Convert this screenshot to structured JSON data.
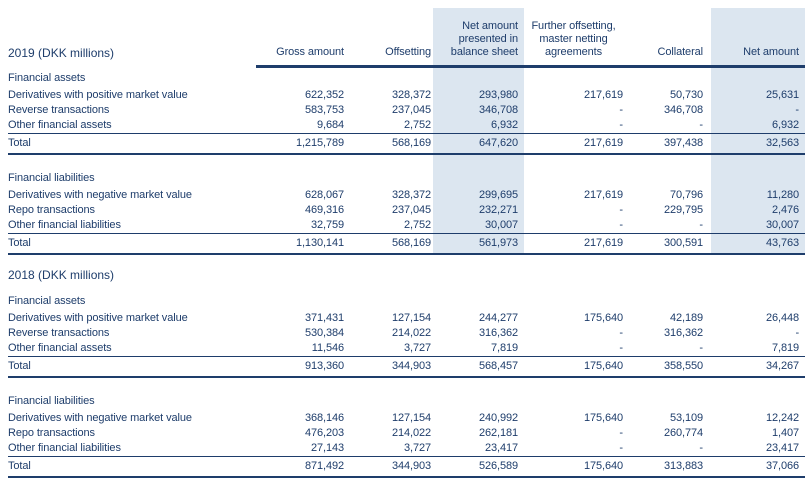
{
  "palette": {
    "text_navy": "#1e3d6b",
    "rule_navy": "#0c3a5e",
    "column_shade": "#dce6f0",
    "page_background": "#ffffff"
  },
  "columns": [
    {
      "label": "Gross amount",
      "align": "right",
      "shaded": false
    },
    {
      "label": "Offsetting",
      "align": "right",
      "shaded": false
    },
    {
      "label": "Net amount presented in balance sheet",
      "align": "right",
      "shaded": true
    },
    {
      "label": "Further offsetting, master netting agreements",
      "align": "center",
      "shaded": false
    },
    {
      "label": "Collateral",
      "align": "right",
      "shaded": false
    },
    {
      "label": "Net amount",
      "align": "right",
      "shaded": true
    }
  ],
  "tables": [
    {
      "year_label": "2019 (DKK millions)",
      "show_column_headers": true,
      "shaded": true,
      "sections": [
        {
          "title": "Financial assets",
          "rows": [
            {
              "label": "Derivatives with positive market value",
              "values": [
                "622,352",
                "328,372",
                "293,980",
                "217,619",
                "50,730",
                "25,631"
              ]
            },
            {
              "label": "Reverse transactions",
              "values": [
                "583,753",
                "237,045",
                "346,708",
                "-",
                "346,708",
                "-"
              ]
            },
            {
              "label": "Other financial assets",
              "values": [
                "9,684",
                "2,752",
                "6,932",
                "-",
                "-",
                "6,932"
              ]
            }
          ],
          "total": {
            "label": "Total",
            "values": [
              "1,215,789",
              "568,169",
              "647,620",
              "217,619",
              "397,438",
              "32,563"
            ]
          }
        },
        {
          "title": "Financial liabilities",
          "rows": [
            {
              "label": "Derivatives with negative market value",
              "values": [
                "628,067",
                "328,372",
                "299,695",
                "217,619",
                "70,796",
                "11,280"
              ]
            },
            {
              "label": "Repo transactions",
              "values": [
                "469,316",
                "237,045",
                "232,271",
                "-",
                "229,795",
                "2,476"
              ]
            },
            {
              "label": "Other financial liabilities",
              "values": [
                "32,759",
                "2,752",
                "30,007",
                "-",
                "-",
                "30,007"
              ]
            }
          ],
          "total": {
            "label": "Total",
            "values": [
              "1,130,141",
              "568,169",
              "561,973",
              "217,619",
              "300,591",
              "43,763"
            ]
          }
        }
      ]
    },
    {
      "year_label": "2018 (DKK millions)",
      "show_column_headers": false,
      "shaded": false,
      "sections": [
        {
          "title": "Financial assets",
          "rows": [
            {
              "label": "Derivatives with positive market value",
              "values": [
                "371,431",
                "127,154",
                "244,277",
                "175,640",
                "42,189",
                "26,448"
              ]
            },
            {
              "label": "Reverse transactions",
              "values": [
                "530,384",
                "214,022",
                "316,362",
                "-",
                "316,362",
                "-"
              ]
            },
            {
              "label": "Other financial assets",
              "values": [
                "11,546",
                "3,727",
                "7,819",
                "-",
                "-",
                "7,819"
              ]
            }
          ],
          "total": {
            "label": "Total",
            "values": [
              "913,360",
              "344,903",
              "568,457",
              "175,640",
              "358,550",
              "34,267"
            ]
          }
        },
        {
          "title": "Financial liabilities",
          "rows": [
            {
              "label": "Derivatives with negative market value",
              "values": [
                "368,146",
                "127,154",
                "240,992",
                "175,640",
                "53,109",
                "12,242"
              ]
            },
            {
              "label": "Repo transactions",
              "values": [
                "476,203",
                "214,022",
                "262,181",
                "-",
                "260,774",
                "1,407"
              ]
            },
            {
              "label": "Other financial liabilities",
              "values": [
                "27,143",
                "3,727",
                "23,417",
                "-",
                "-",
                "23,417"
              ]
            }
          ],
          "total": {
            "label": "Total",
            "values": [
              "871,492",
              "344,903",
              "526,589",
              "175,640",
              "313,883",
              "37,066"
            ]
          }
        }
      ]
    }
  ]
}
